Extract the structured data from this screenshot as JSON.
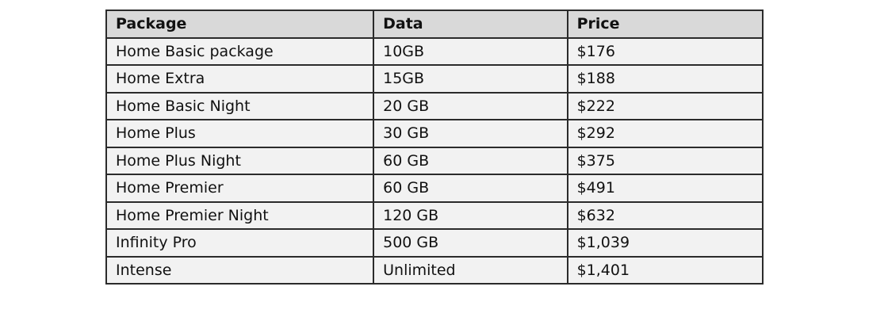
{
  "table": {
    "headers": [
      "Package",
      "Data",
      "Price"
    ],
    "rows": [
      [
        "Home Basic package",
        "10GB",
        "$176"
      ],
      [
        "Home Extra",
        "15GB",
        "$188"
      ],
      [
        "Home Basic Night",
        "20 GB",
        "$222"
      ],
      [
        "Home Plus",
        "30 GB",
        "$292"
      ],
      [
        "Home Plus Night",
        "60 GB",
        "$375"
      ],
      [
        "Home Premier",
        "60 GB",
        "$491"
      ],
      [
        "Home Premier Night",
        "120 GB",
        "$632"
      ],
      [
        "Infinity Pro",
        "500 GB",
        "$1,039"
      ],
      [
        "Intense",
        "Unlimited",
        "$1,401"
      ]
    ],
    "colors": {
      "header_bg": "#d9d9d9",
      "row_bg": "#f2f2f2",
      "border": "#2b2b2b"
    }
  }
}
